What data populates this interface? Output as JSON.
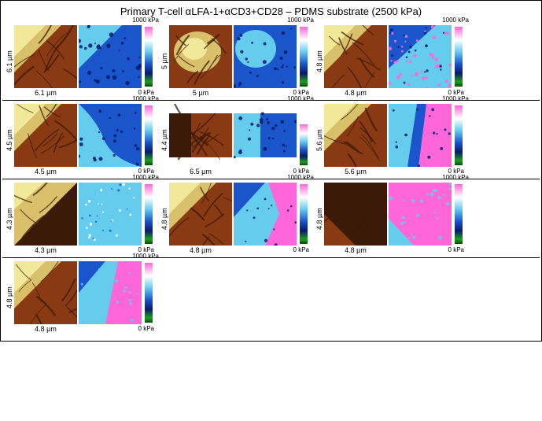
{
  "title": "Primary T-cell αLFA-1+αCD3+CD28 – PDMS substrate (2500 kPa)",
  "colorbar": {
    "top_label": "1000 kPa",
    "bottom_label": "0 kPa",
    "stops": [
      "#ff66d9",
      "#ffffff",
      "#66ccee",
      "#1a55cc",
      "#0a1a6a",
      "#1aa01a",
      "#0a4a0a"
    ]
  },
  "topography_colors": {
    "dark": "#3b1a0a",
    "mid": "#8a3a12",
    "light": "#d9c06a",
    "highlight": "#f2e89a"
  },
  "stiffness_colors": {
    "low": "#0a1a6a",
    "midlow": "#1a55cc",
    "mid": "#66ccee",
    "high": "#ff66d9",
    "white": "#ffffff"
  },
  "rows": [
    [
      {
        "size_um": "6.1 µm",
        "yaxis": "6.1 µm",
        "topo_variant": "corner-bright-tl",
        "stiff_variant": "blue-dominant"
      },
      {
        "size_um": "5 µm",
        "yaxis": "5 µm",
        "topo_variant": "center-mound",
        "stiff_variant": "blue-cyan"
      },
      {
        "size_um": "4.8 µm",
        "yaxis": "4.8 µm",
        "topo_variant": "corner-bright-tl",
        "stiff_variant": "cyan-pink-speckle"
      }
    ],
    [
      {
        "size_um": "4.5 µm",
        "yaxis": "4.5 µm",
        "topo_variant": "corner-bright-tl",
        "stiff_variant": "blue-arc"
      },
      {
        "size_um": "6.5 µm",
        "yaxis": "4.4 µm",
        "topo_variant": "wide-ridges",
        "stiff_variant": "blue-half",
        "narrow": true
      },
      {
        "size_um": "5.6 µm",
        "yaxis": "5.6 µm",
        "topo_variant": "corner-bright-tl",
        "stiff_variant": "pink-right"
      }
    ],
    [
      {
        "size_um": "4.3 µm",
        "yaxis": "4.3 µm",
        "topo_variant": "diag-split",
        "stiff_variant": "cyan-flat"
      },
      {
        "size_um": "4.8 µm",
        "yaxis": "4.8 µm",
        "topo_variant": "corner-bright-tl",
        "stiff_variant": "cyan-pink-fingers"
      },
      {
        "size_um": "4.8 µm",
        "yaxis": "4.8 µm",
        "topo_variant": "dark-field",
        "stiff_variant": "pink-dominant"
      }
    ],
    [
      {
        "size_um": "4.8 µm",
        "yaxis": "4.8 µm",
        "topo_variant": "corner-bright-tl",
        "stiff_variant": "pink-cyan-mix"
      }
    ]
  ]
}
